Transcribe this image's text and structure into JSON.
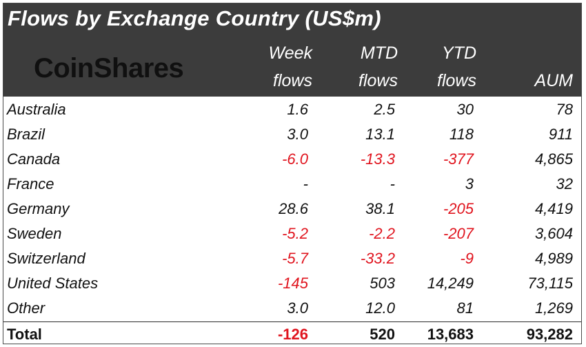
{
  "title": "Flows by Exchange Country (US$m)",
  "logo_text": "CoinShares",
  "columns": [
    {
      "line1": "Week",
      "line2": "flows"
    },
    {
      "line1": "MTD",
      "line2": "flows"
    },
    {
      "line1": "YTD",
      "line2": "flows"
    },
    {
      "line1": "",
      "line2": "AUM"
    }
  ],
  "rows": [
    {
      "country": "Australia",
      "week": "1.6",
      "mtd": "2.5",
      "ytd": "30",
      "aum": "78"
    },
    {
      "country": "Brazil",
      "week": "3.0",
      "mtd": "13.1",
      "ytd": "118",
      "aum": "911"
    },
    {
      "country": "Canada",
      "week": "-6.0",
      "mtd": "-13.3",
      "ytd": "-377",
      "aum": "4,865"
    },
    {
      "country": "France",
      "week": "-",
      "mtd": "-",
      "ytd": "3",
      "aum": "32"
    },
    {
      "country": "Germany",
      "week": "28.6",
      "mtd": "38.1",
      "ytd": "-205",
      "aum": "4,419"
    },
    {
      "country": "Sweden",
      "week": "-5.2",
      "mtd": "-2.2",
      "ytd": "-207",
      "aum": "3,604"
    },
    {
      "country": "Switzerland",
      "week": "-5.7",
      "mtd": "-33.2",
      "ytd": "-9",
      "aum": "4,989"
    },
    {
      "country": "United States",
      "week": "-145",
      "mtd": "503",
      "ytd": "14,249",
      "aum": "73,115"
    },
    {
      "country": "Other",
      "week": "3.0",
      "mtd": "12.0",
      "ytd": "81",
      "aum": "1,269"
    }
  ],
  "total": {
    "country": "Total",
    "week": "-126",
    "mtd": "520",
    "ytd": "13,683",
    "aum": "93,282"
  },
  "colors": {
    "header_bg": "#3c3c3c",
    "negative": "#e0141e",
    "text": "#111111"
  }
}
